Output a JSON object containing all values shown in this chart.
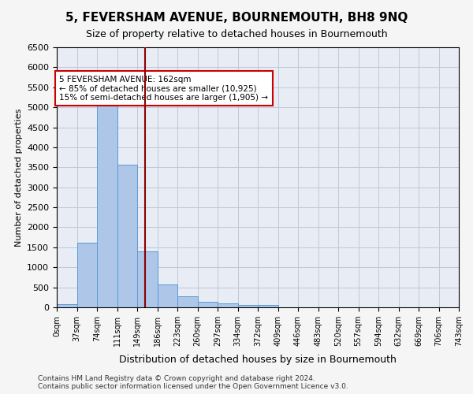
{
  "title": "5, FEVERSHAM AVENUE, BOURNEMOUTH, BH8 9NQ",
  "subtitle": "Size of property relative to detached houses in Bournemouth",
  "xlabel": "Distribution of detached houses by size in Bournemouth",
  "ylabel": "Number of detached properties",
  "footnote1": "Contains HM Land Registry data © Crown copyright and database right 2024.",
  "footnote2": "Contains public sector information licensed under the Open Government Licence v3.0.",
  "bar_values": [
    75,
    1625,
    5075,
    3575,
    1400,
    575,
    285,
    135,
    90,
    65,
    55,
    0,
    0,
    0,
    0,
    0,
    0,
    0,
    0,
    0
  ],
  "tick_labels": [
    "0sqm",
    "37sqm",
    "74sqm",
    "111sqm",
    "149sqm",
    "186sqm",
    "223sqm",
    "260sqm",
    "297sqm",
    "334sqm",
    "372sqm",
    "409sqm",
    "446sqm",
    "483sqm",
    "520sqm",
    "557sqm",
    "594sqm",
    "632sqm",
    "669sqm",
    "706sqm",
    "743sqm"
  ],
  "bar_color": "#aec6e8",
  "bar_edge_color": "#5a9bd5",
  "vline_x": 162,
  "vline_color": "#8b0000",
  "ylim": [
    0,
    6500
  ],
  "annotation_text": "5 FEVERSHAM AVENUE: 162sqm\n← 85% of detached houses are smaller (10,925)\n15% of semi-detached houses are larger (1,905) →",
  "annotation_box_color": "#ffffff",
  "annotation_box_edge": "#cc0000",
  "grid_color": "#c0c8d8",
  "plot_bg_color": "#e8edf5",
  "fig_bg_color": "#f5f5f5",
  "bin_width": 37
}
